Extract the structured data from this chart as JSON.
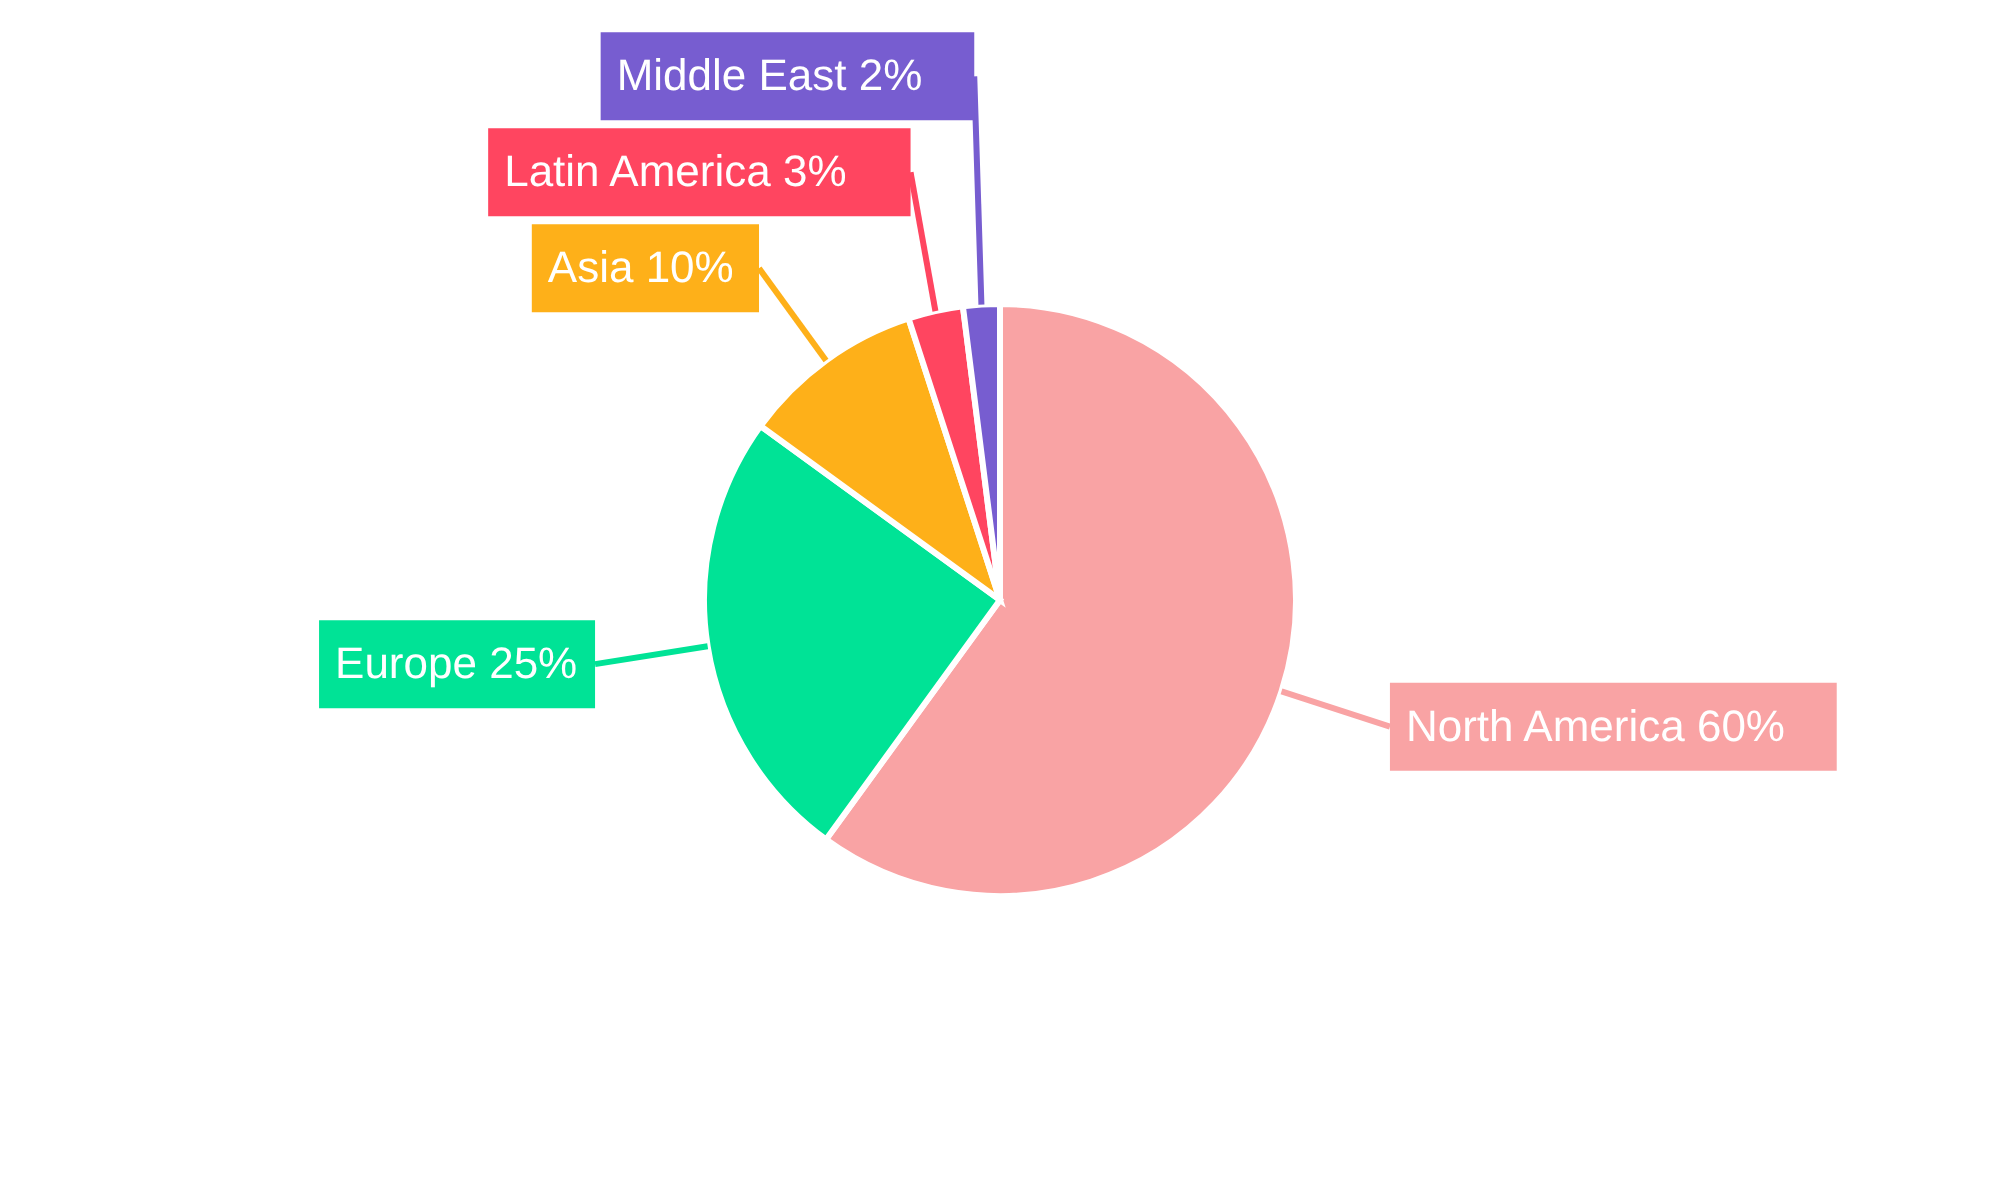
{
  "chart_data": {
    "type": "pie",
    "categories": [
      "North America",
      "Europe",
      "Asia",
      "Latin America",
      "Middle East"
    ],
    "values": [
      60,
      25,
      10,
      3,
      2
    ],
    "value_labels": [
      "60%",
      "25%",
      "10%",
      "3%",
      "2%"
    ],
    "colors": [
      "#f9a3a4",
      "#00e396",
      "#feb019",
      "#ff4560",
      "#775dd0"
    ]
  }
}
